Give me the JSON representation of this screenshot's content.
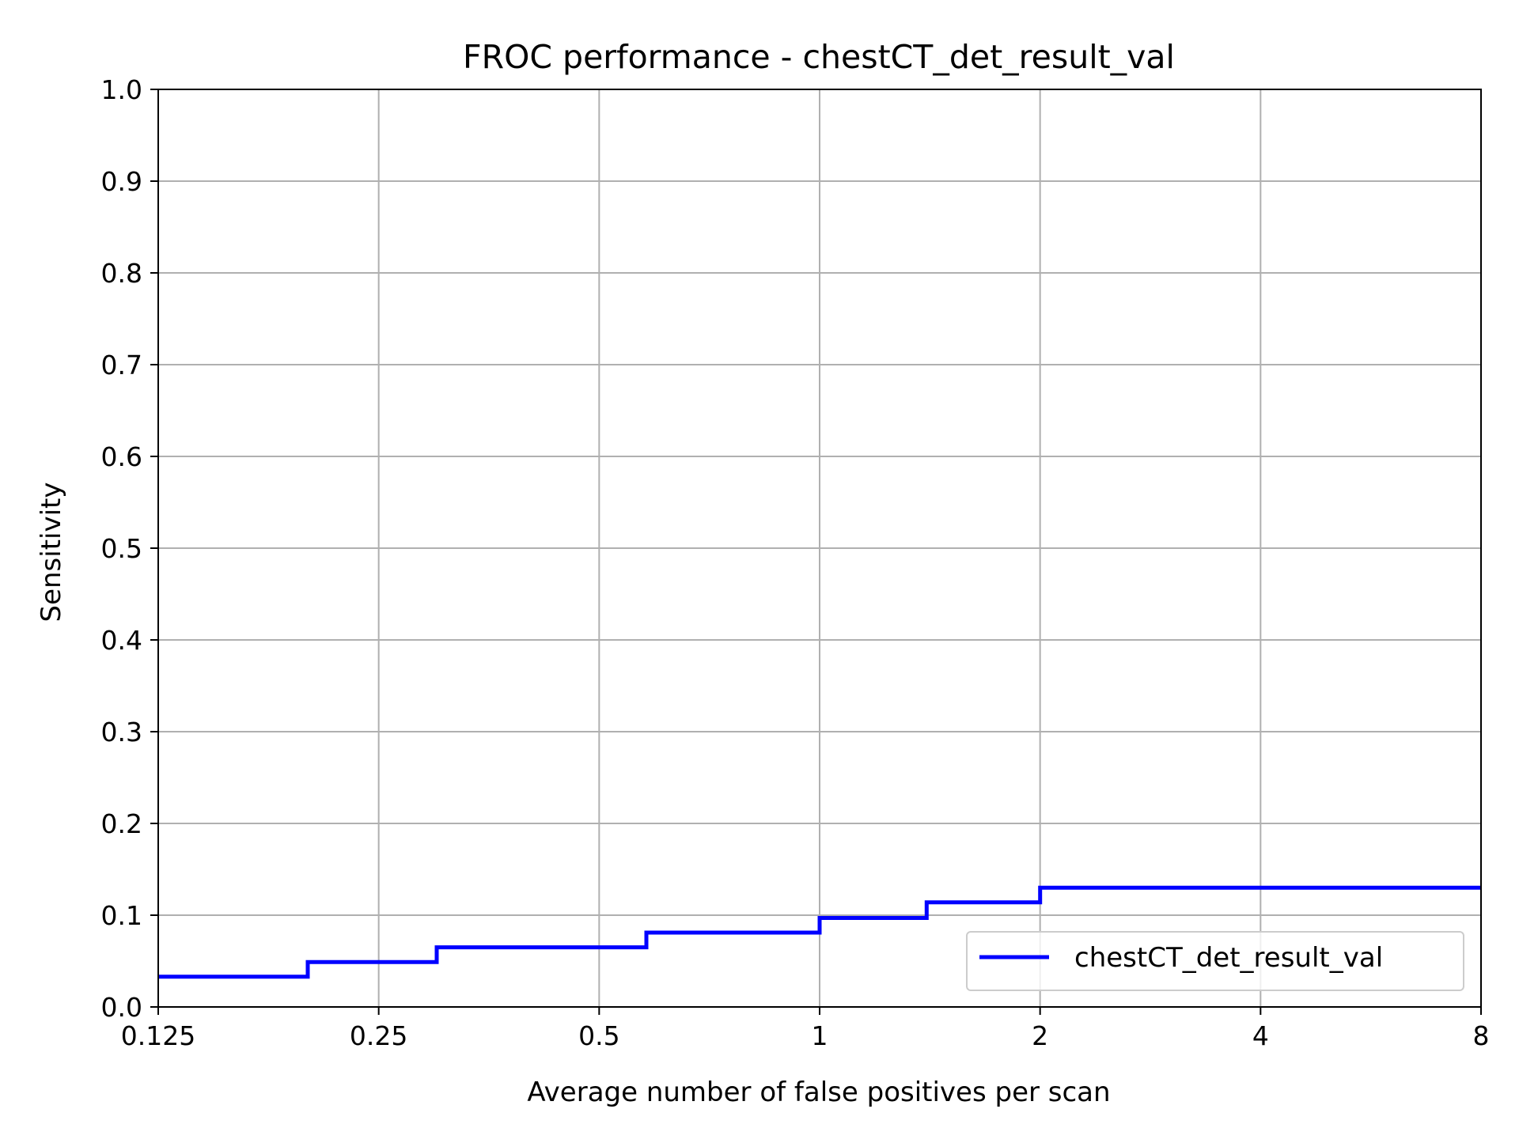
{
  "chart_data": {
    "type": "line",
    "title": "FROC performance - chestCT_det_result_val",
    "xlabel": "Average number of false positives per scan",
    "ylabel": "Sensitivity",
    "x_scale": "log2",
    "xlim": [
      0.125,
      8
    ],
    "ylim": [
      0.0,
      1.0
    ],
    "x_ticks": [
      0.125,
      0.25,
      0.5,
      1,
      2,
      4,
      8
    ],
    "x_tick_labels": [
      "0.125",
      "0.25",
      "0.5",
      "1",
      "2",
      "4",
      "8"
    ],
    "y_ticks": [
      0.0,
      0.1,
      0.2,
      0.3,
      0.4,
      0.5,
      0.6,
      0.7,
      0.8,
      0.9,
      1.0
    ],
    "y_tick_labels": [
      "0.0",
      "0.1",
      "0.2",
      "0.3",
      "0.4",
      "0.5",
      "0.6",
      "0.7",
      "0.8",
      "0.9",
      "1.0"
    ],
    "grid": true,
    "legend_position": "lower-right",
    "series": [
      {
        "name": "chestCT_det_result_val",
        "color": "#0000ff",
        "step": true,
        "x": [
          0.125,
          0.2,
          0.2,
          0.3,
          0.3,
          0.58,
          0.58,
          1.0,
          1.0,
          1.4,
          1.4,
          2.0,
          2.0,
          8.0
        ],
        "y": [
          0.033,
          0.033,
          0.049,
          0.049,
          0.065,
          0.065,
          0.081,
          0.081,
          0.097,
          0.097,
          0.114,
          0.114,
          0.13,
          0.13
        ]
      }
    ]
  }
}
